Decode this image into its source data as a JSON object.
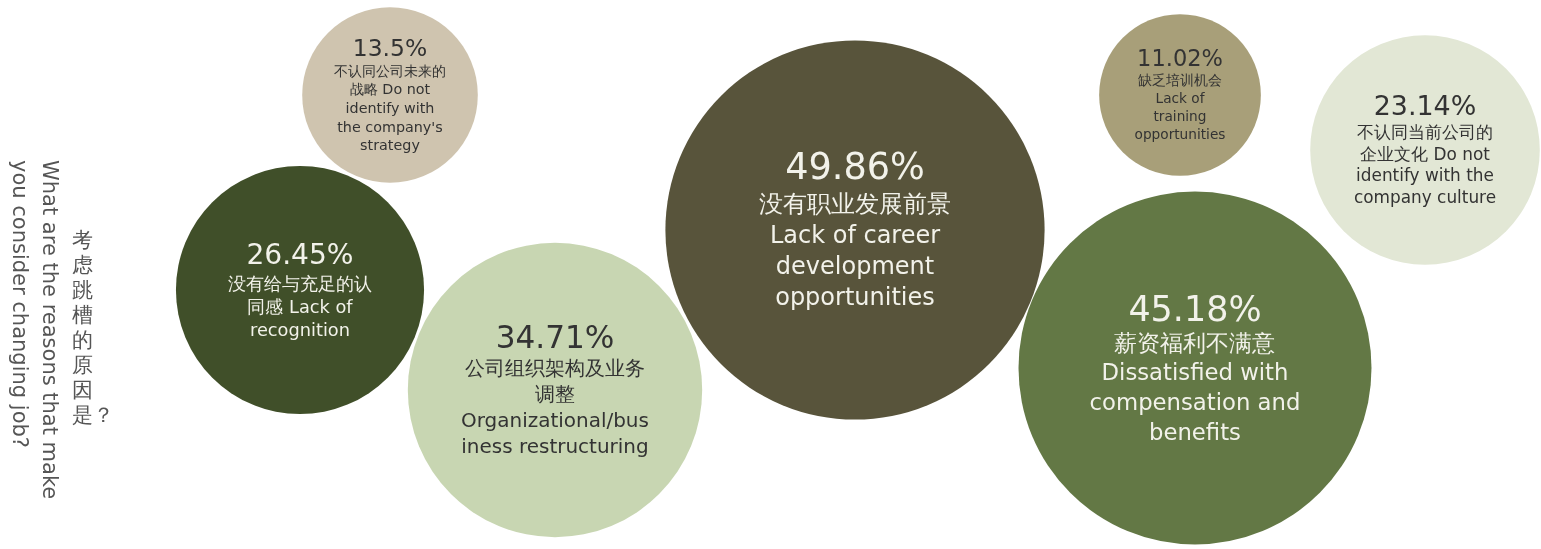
{
  "chart_data": {
    "type": "other",
    "title": "考虑跳槽的原因是？",
    "subtitle": "What are the reasons that make you consider changing job?",
    "categories": [
      "不认同公司未来的战略 Do not identify with the company's strategy",
      "没有给与充足的认同感 Lack of recognition",
      "公司组织架构及业务调整 Organizational/business restructuring",
      "没有职业发展前景 Lack of career development opportunities",
      "薪资福利不满意 Dissatisfied with compensation and benefits",
      "缺乏培训机会 Lack of training opportunities",
      "不认同当前公司的企业文化 Do not identify with the company culture"
    ],
    "values": [
      13.5,
      26.45,
      34.71,
      49.86,
      45.18,
      11.02,
      23.14
    ],
    "value_labels": [
      "13.5%",
      "26.45%",
      "34.71%",
      "49.86%",
      "45.18%",
      "11.02%",
      "23.14%"
    ],
    "colors": [
      "#cfc4af",
      "#404f29",
      "#c8d6b2",
      "#58543b",
      "#637845",
      "#a89f79",
      "#e2e7d5"
    ]
  }
}
